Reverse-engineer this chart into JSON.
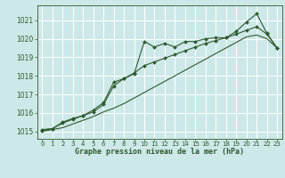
{
  "title": "Graphe pression niveau de la mer (hPa)",
  "bg_color": "#cde8e8",
  "grid_color": "#b0d0d0",
  "line_color": "#2d5a2d",
  "xlim": [
    -0.5,
    23.5
  ],
  "ylim": [
    1014.6,
    1021.8
  ],
  "yticks": [
    1015,
    1016,
    1017,
    1018,
    1019,
    1020,
    1021
  ],
  "xticks": [
    0,
    1,
    2,
    3,
    4,
    5,
    6,
    7,
    8,
    9,
    10,
    11,
    12,
    13,
    14,
    15,
    16,
    17,
    18,
    19,
    20,
    21,
    22,
    23
  ],
  "series1_x": [
    0,
    1,
    2,
    3,
    4,
    5,
    6,
    7,
    8,
    9,
    10,
    11,
    12,
    13,
    14,
    15,
    16,
    17,
    18,
    19,
    20,
    21,
    22,
    23
  ],
  "series1_y": [
    1015.1,
    1015.15,
    1015.5,
    1015.7,
    1015.85,
    1016.15,
    1016.55,
    1017.65,
    1017.85,
    1018.1,
    1019.85,
    1019.55,
    1019.75,
    1019.55,
    1019.85,
    1019.85,
    1020.0,
    1020.05,
    1020.05,
    1020.4,
    1020.9,
    1021.35,
    1020.3,
    1019.5
  ],
  "series2_x": [
    0,
    1,
    2,
    3,
    4,
    5,
    6,
    7,
    8,
    9,
    10,
    11,
    12,
    13,
    14,
    15,
    16,
    17,
    18,
    19,
    20,
    21,
    22,
    23
  ],
  "series2_y": [
    1015.05,
    1015.15,
    1015.45,
    1015.65,
    1015.85,
    1016.05,
    1016.45,
    1017.45,
    1017.85,
    1018.15,
    1018.55,
    1018.75,
    1018.95,
    1019.15,
    1019.35,
    1019.55,
    1019.75,
    1019.9,
    1020.05,
    1020.25,
    1020.45,
    1020.65,
    1020.25,
    1019.5
  ],
  "series3_x": [
    0,
    1,
    2,
    3,
    4,
    5,
    6,
    7,
    8,
    9,
    10,
    11,
    12,
    13,
    14,
    15,
    16,
    17,
    18,
    19,
    20,
    21,
    22,
    23
  ],
  "series3_y": [
    1015.0,
    1015.1,
    1015.2,
    1015.4,
    1015.6,
    1015.8,
    1016.05,
    1016.25,
    1016.5,
    1016.8,
    1017.1,
    1017.4,
    1017.7,
    1018.0,
    1018.3,
    1018.6,
    1018.9,
    1019.2,
    1019.5,
    1019.8,
    1020.1,
    1020.2,
    1020.0,
    1019.5
  ]
}
